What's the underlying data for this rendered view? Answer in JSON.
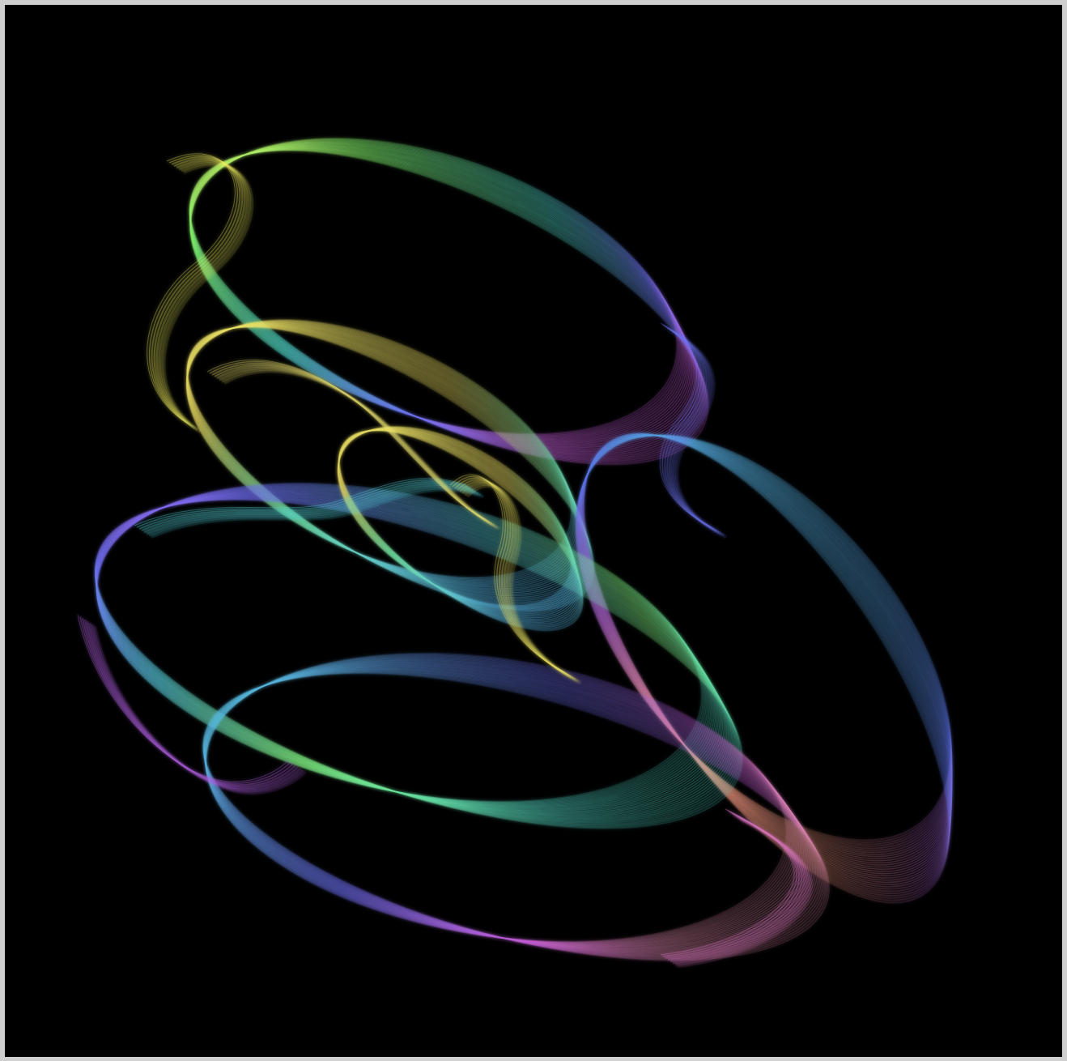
{
  "image": {
    "subject": "strange-attractor-render",
    "background_color": "#000000",
    "frame_color": "#cfcfcf",
    "palette": [
      "#f5f056",
      "#9df35a",
      "#4fe3a0",
      "#57c8e6",
      "#6f6ff0",
      "#b05ce0",
      "#e46ad2",
      "#e8906a"
    ]
  }
}
